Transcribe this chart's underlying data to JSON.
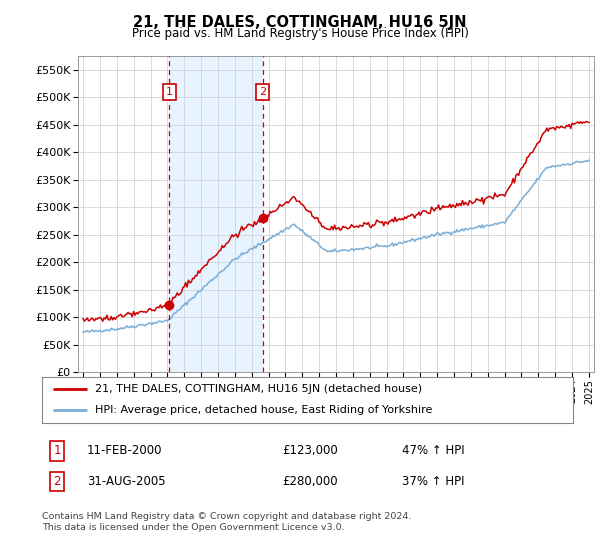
{
  "title": "21, THE DALES, COTTINGHAM, HU16 5JN",
  "subtitle": "Price paid vs. HM Land Registry's House Price Index (HPI)",
  "legend_entry1": "21, THE DALES, COTTINGHAM, HU16 5JN (detached house)",
  "legend_entry2": "HPI: Average price, detached house, East Riding of Yorkshire",
  "annotation1_label": "1",
  "annotation1_date": "11-FEB-2000",
  "annotation1_price": "£123,000",
  "annotation1_hpi": "47% ↑ HPI",
  "annotation2_label": "2",
  "annotation2_date": "31-AUG-2005",
  "annotation2_price": "£280,000",
  "annotation2_hpi": "37% ↑ HPI",
  "footnote": "Contains HM Land Registry data © Crown copyright and database right 2024.\nThis data is licensed under the Open Government Licence v3.0.",
  "red_color": "#cc0000",
  "blue_color": "#7aaed6",
  "shade_color": "#ddeeff",
  "vline_color": "#cc0000",
  "bg_color": "#ffffff",
  "grid_color": "#cccccc",
  "ylim": [
    0,
    575000
  ],
  "yticks": [
    0,
    50000,
    100000,
    150000,
    200000,
    250000,
    300000,
    350000,
    400000,
    450000,
    500000,
    550000
  ],
  "sale1_x": 2000.12,
  "sale1_y": 123000,
  "sale2_x": 2005.66,
  "sale2_y": 280000,
  "xlim_left": 1994.7,
  "xlim_right": 2025.3
}
